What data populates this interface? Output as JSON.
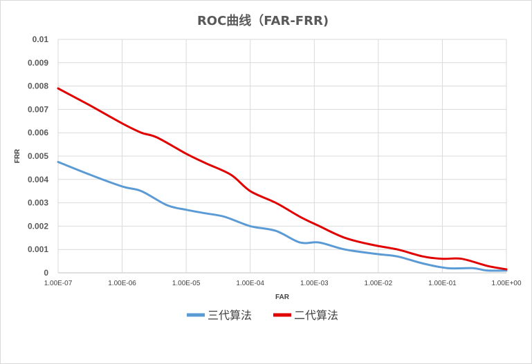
{
  "chart_data": {
    "type": "line",
    "title": "ROC曲线（FAR-FRR)",
    "xlabel": "FAR",
    "ylabel": "FRR",
    "x_scale": "log",
    "xlim": [
      1e-07,
      1
    ],
    "ylim": [
      0,
      0.01
    ],
    "grid": true,
    "legend_position": "bottom",
    "x_tick_labels": [
      "1.00E-07",
      "1.00E-06",
      "1.00E-05",
      "1.00E-04",
      "1.00E-03",
      "1.00E-02",
      "1.00E-01",
      "1.00E+00"
    ],
    "y_tick_labels": [
      "0",
      "0.001",
      "0.002",
      "0.003",
      "0.004",
      "0.005",
      "0.006",
      "0.007",
      "0.008",
      "0.009",
      "0.01"
    ],
    "series": [
      {
        "name": "三代算法",
        "color": "#5b9bd5",
        "x": [
          1e-07,
          3.16e-07,
          1e-06,
          2e-06,
          5e-06,
          1e-05,
          2e-05,
          4e-05,
          0.0001,
          0.00025,
          0.0006,
          0.0012,
          0.003,
          0.01,
          0.02,
          0.05,
          0.12,
          0.3,
          0.5,
          1
        ],
        "y": [
          0.00475,
          0.0042,
          0.0037,
          0.0035,
          0.0029,
          0.0027,
          0.00255,
          0.0024,
          0.002,
          0.0018,
          0.0013,
          0.0013,
          0.001,
          0.0008,
          0.0007,
          0.0004,
          0.0002,
          0.0002,
          0.0001,
          0.0001
        ]
      },
      {
        "name": "二代算法",
        "color": "#e00000",
        "x": [
          1e-07,
          3e-07,
          1e-06,
          2e-06,
          3.5e-06,
          1e-05,
          2e-05,
          5e-05,
          0.0001,
          0.00025,
          0.0006,
          0.0012,
          0.003,
          0.008,
          0.02,
          0.05,
          0.1,
          0.2,
          0.5,
          1
        ],
        "y": [
          0.0079,
          0.0072,
          0.0064,
          0.006,
          0.0058,
          0.0051,
          0.0047,
          0.0042,
          0.0035,
          0.003,
          0.0024,
          0.002,
          0.0015,
          0.0012,
          0.001,
          0.0007,
          0.0006,
          0.0006,
          0.0003,
          0.00015
        ]
      }
    ]
  }
}
